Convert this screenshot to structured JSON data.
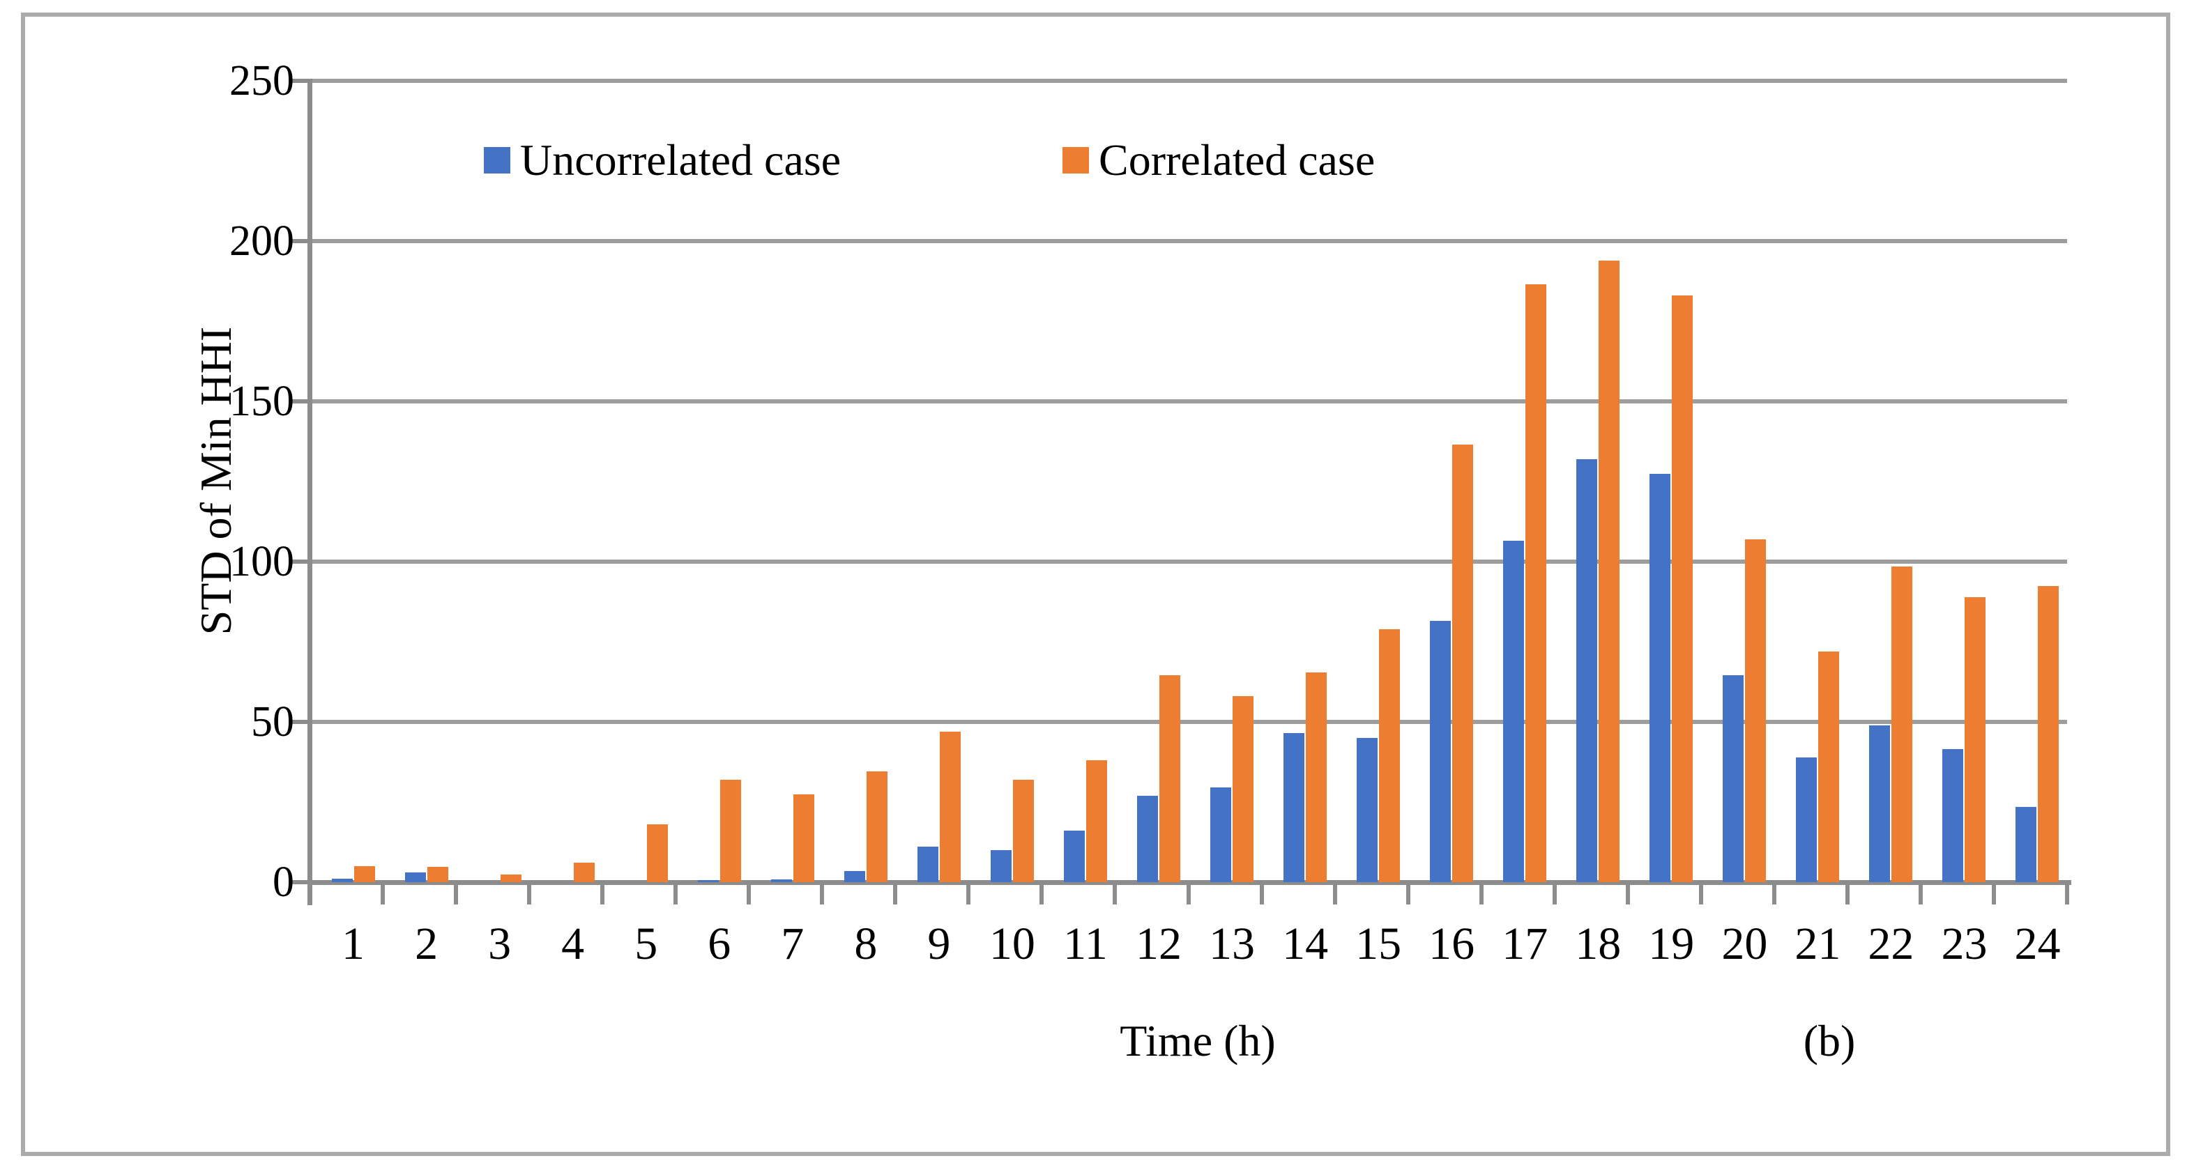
{
  "figure": {
    "ylabel": "STD of Min HHI",
    "xlabel": "Time (h)",
    "panel_label": "(b)"
  },
  "legend": {
    "items": [
      {
        "label": "Uncorrelated case",
        "color": "#4472C4"
      },
      {
        "label": "Correlated case",
        "color": "#ED7D31"
      }
    ]
  },
  "chart_data": {
    "type": "bar",
    "title": "",
    "xlabel": "Time (h)",
    "ylabel": "STD of Min HHI",
    "panel_label": "(b)",
    "ylim": [
      0,
      250
    ],
    "yticks": [
      0,
      50,
      100,
      150,
      200,
      250
    ],
    "grid": "horizontal",
    "legend_position": "top-inside",
    "categories": [
      1,
      2,
      3,
      4,
      5,
      6,
      7,
      8,
      9,
      10,
      11,
      12,
      13,
      14,
      15,
      16,
      17,
      18,
      19,
      20,
      21,
      22,
      23,
      24
    ],
    "series": [
      {
        "name": "Uncorrelated case",
        "color": "#4472C4",
        "values": [
          1,
          3,
          0,
          0,
          0,
          0.7,
          0.8,
          3.5,
          11,
          10,
          16,
          27,
          29.5,
          46.5,
          45,
          81.5,
          106.5,
          132,
          127.5,
          64.5,
          39,
          49,
          41.5,
          23.5
        ]
      },
      {
        "name": "Correlated case",
        "color": "#ED7D31",
        "values": [
          5,
          4.7,
          2.5,
          6,
          18,
          32,
          27.5,
          34.5,
          47,
          32,
          38,
          64.5,
          58,
          65.5,
          79,
          136.5,
          186.5,
          194,
          183,
          107,
          72,
          98.5,
          89,
          92.5
        ]
      }
    ]
  }
}
